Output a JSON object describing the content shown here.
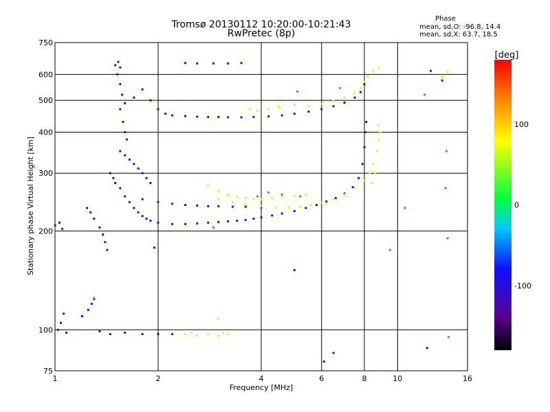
{
  "chart_data": {
    "type": "scatter",
    "title": "Tromsø 20130112 10:20:00-10:21:43",
    "subtitle": "RwPretec (8p)",
    "xlabel": "Frequency [MHz]",
    "ylabel": "Stationary phase Virtual Height [km]",
    "x_scale": "log",
    "y_scale": "log",
    "xlim": [
      1,
      16
    ],
    "ylim": [
      75,
      750
    ],
    "x_ticks": [
      1,
      2,
      4,
      6,
      8,
      10,
      16
    ],
    "y_ticks": [
      75,
      100,
      200,
      300,
      400,
      500,
      600,
      750
    ],
    "grid": true,
    "phase_stats": {
      "title": "Phase",
      "line_o": "mean, sd,O: -96.8, 14.4",
      "line_x": "mean, sd,X: 63.7, 18.5"
    },
    "colorbar": {
      "label": "[deg]",
      "range": [
        -180,
        180
      ],
      "ticks": [
        100,
        0,
        -100
      ],
      "colormap": "rainbow (black-purple-blue-cyan-green-yellow-red)"
    },
    "series": [
      {
        "mode": "O",
        "phase_deg": -100,
        "points": [
          [
            1.0,
            208
          ],
          [
            1.03,
            212
          ],
          [
            1.05,
            203
          ],
          [
            1.02,
            100
          ],
          [
            1.04,
            105
          ],
          [
            1.06,
            112
          ],
          [
            1.08,
            98
          ],
          [
            1.2,
            110
          ],
          [
            1.25,
            115
          ],
          [
            1.28,
            120
          ],
          [
            1.3,
            124
          ],
          [
            1.24,
            235
          ],
          [
            1.27,
            228
          ],
          [
            1.3,
            218
          ],
          [
            1.35,
            205
          ],
          [
            1.38,
            195
          ],
          [
            1.4,
            185
          ],
          [
            1.42,
            175
          ],
          [
            1.45,
            300
          ],
          [
            1.48,
            290
          ],
          [
            1.5,
            280
          ],
          [
            1.5,
            640
          ],
          [
            1.53,
            655
          ],
          [
            1.55,
            630
          ],
          [
            1.52,
            600
          ],
          [
            1.55,
            560
          ],
          [
            1.57,
            520
          ],
          [
            1.6,
            490
          ],
          [
            1.55,
            470
          ],
          [
            1.58,
            430
          ],
          [
            1.6,
            400
          ],
          [
            1.62,
            380
          ],
          [
            1.55,
            350
          ],
          [
            1.6,
            340
          ],
          [
            1.65,
            330
          ],
          [
            1.7,
            320
          ],
          [
            1.75,
            310
          ],
          [
            1.8,
            300
          ],
          [
            1.85,
            290
          ],
          [
            1.9,
            280
          ],
          [
            1.55,
            270
          ],
          [
            1.6,
            255
          ],
          [
            1.65,
            245
          ],
          [
            1.7,
            235
          ],
          [
            1.75,
            228
          ],
          [
            1.8,
            222
          ],
          [
            1.85,
            218
          ],
          [
            1.9,
            215
          ],
          [
            2.0,
            212
          ],
          [
            2.2,
            210
          ],
          [
            2.4,
            210
          ],
          [
            2.6,
            211
          ],
          [
            2.8,
            212
          ],
          [
            3.0,
            213
          ],
          [
            3.2,
            214
          ],
          [
            3.4,
            215
          ],
          [
            3.6,
            216
          ],
          [
            3.8,
            218
          ],
          [
            4.0,
            220
          ],
          [
            4.3,
            223
          ],
          [
            4.6,
            226
          ],
          [
            5.0,
            230
          ],
          [
            5.4,
            235
          ],
          [
            5.8,
            240
          ],
          [
            6.2,
            246
          ],
          [
            6.6,
            252
          ],
          [
            7.0,
            260
          ],
          [
            7.4,
            272
          ],
          [
            7.7,
            290
          ],
          [
            7.9,
            320
          ],
          [
            8.0,
            360
          ],
          [
            8.05,
            400
          ],
          [
            8.1,
            430
          ],
          [
            1.8,
            250
          ],
          [
            2.0,
            245
          ],
          [
            2.2,
            242
          ],
          [
            2.4,
            240
          ],
          [
            2.6,
            239
          ],
          [
            2.8,
            238
          ],
          [
            3.0,
            238
          ],
          [
            3.3,
            237
          ],
          [
            3.6,
            237
          ],
          [
            4.0,
            236
          ],
          [
            1.7,
            510
          ],
          [
            1.8,
            540
          ],
          [
            1.9,
            500
          ],
          [
            2.0,
            470
          ],
          [
            2.1,
            455
          ],
          [
            2.2,
            450
          ],
          [
            2.4,
            448
          ],
          [
            2.6,
            446
          ],
          [
            2.8,
            445
          ],
          [
            3.0,
            445
          ],
          [
            3.2,
            444
          ],
          [
            3.5,
            444
          ],
          [
            3.8,
            445
          ],
          [
            4.2,
            447
          ],
          [
            4.6,
            450
          ],
          [
            5.0,
            455
          ],
          [
            5.5,
            462
          ],
          [
            6.0,
            470
          ],
          [
            6.5,
            480
          ],
          [
            7.0,
            492
          ],
          [
            7.5,
            510
          ],
          [
            7.8,
            530
          ],
          [
            8.0,
            560
          ],
          [
            2.4,
            650
          ],
          [
            2.6,
            648
          ],
          [
            2.9,
            648
          ],
          [
            3.2,
            648
          ],
          [
            3.5,
            650
          ],
          [
            1.35,
            99
          ],
          [
            1.45,
            97
          ],
          [
            1.6,
            98
          ],
          [
            1.8,
            97
          ],
          [
            2.0,
            97
          ],
          [
            2.2,
            97
          ],
          [
            6.5,
            85
          ],
          [
            6.1,
            80
          ],
          [
            12.2,
            88
          ],
          [
            13.5,
            575
          ],
          [
            12.5,
            615
          ],
          [
            5.0,
            152
          ],
          [
            1.95,
            178
          ]
        ]
      },
      {
        "mode": "X",
        "phase_deg": 64,
        "points": [
          [
            2.8,
            275
          ],
          [
            3.0,
            265
          ],
          [
            3.2,
            258
          ],
          [
            3.4,
            254
          ],
          [
            3.6,
            252
          ],
          [
            3.8,
            250
          ],
          [
            4.0,
            250
          ],
          [
            4.3,
            252
          ],
          [
            4.6,
            254
          ],
          [
            5.0,
            256
          ],
          [
            5.4,
            258
          ],
          [
            3.0,
            250
          ],
          [
            3.3,
            245
          ],
          [
            3.6,
            241
          ],
          [
            4.0,
            238
          ],
          [
            4.4,
            236
          ],
          [
            4.8,
            236
          ],
          [
            5.2,
            237
          ],
          [
            5.6,
            240
          ],
          [
            6.0,
            244
          ],
          [
            6.5,
            250
          ],
          [
            7.0,
            258
          ],
          [
            7.5,
            270
          ],
          [
            8.0,
            285
          ],
          [
            8.3,
            300
          ],
          [
            8.5,
            320
          ],
          [
            8.7,
            350
          ],
          [
            8.8,
            380
          ],
          [
            8.9,
            400
          ],
          [
            8.8,
            420
          ],
          [
            8.6,
            300
          ],
          [
            8.4,
            280
          ],
          [
            5.5,
            480
          ],
          [
            6.0,
            488
          ],
          [
            6.5,
            498
          ],
          [
            7.0,
            510
          ],
          [
            7.5,
            525
          ],
          [
            7.8,
            545
          ],
          [
            8.0,
            570
          ],
          [
            8.2,
            590
          ],
          [
            8.5,
            615
          ],
          [
            8.8,
            630
          ],
          [
            3.7,
            470
          ],
          [
            3.9,
            465
          ],
          [
            4.2,
            470
          ],
          [
            4.5,
            478
          ],
          [
            5.0,
            485
          ],
          [
            2.4,
            97
          ],
          [
            2.5,
            98
          ],
          [
            2.6,
            96
          ],
          [
            2.8,
            97
          ],
          [
            3.0,
            96
          ],
          [
            3.1,
            98
          ],
          [
            3.2,
            97
          ],
          [
            3.0,
            108
          ],
          [
            13.5,
            590
          ],
          [
            14.0,
            610
          ]
        ]
      },
      {
        "mode": "X-red",
        "phase_deg": 150,
        "points": [
          [
            13.8,
            270
          ],
          [
            13.9,
            350
          ],
          [
            14.0,
            190
          ],
          [
            14.1,
            95
          ],
          [
            12.0,
            520
          ],
          [
            10.5,
            235
          ],
          [
            9.5,
            175
          ],
          [
            4.2,
            262
          ],
          [
            4.6,
            258
          ],
          [
            5.2,
            255
          ],
          [
            3.9,
            255
          ],
          [
            6.8,
            545
          ],
          [
            5.1,
            532
          ],
          [
            2.9,
            205
          ],
          [
            1.3,
            125
          ]
        ]
      }
    ]
  }
}
